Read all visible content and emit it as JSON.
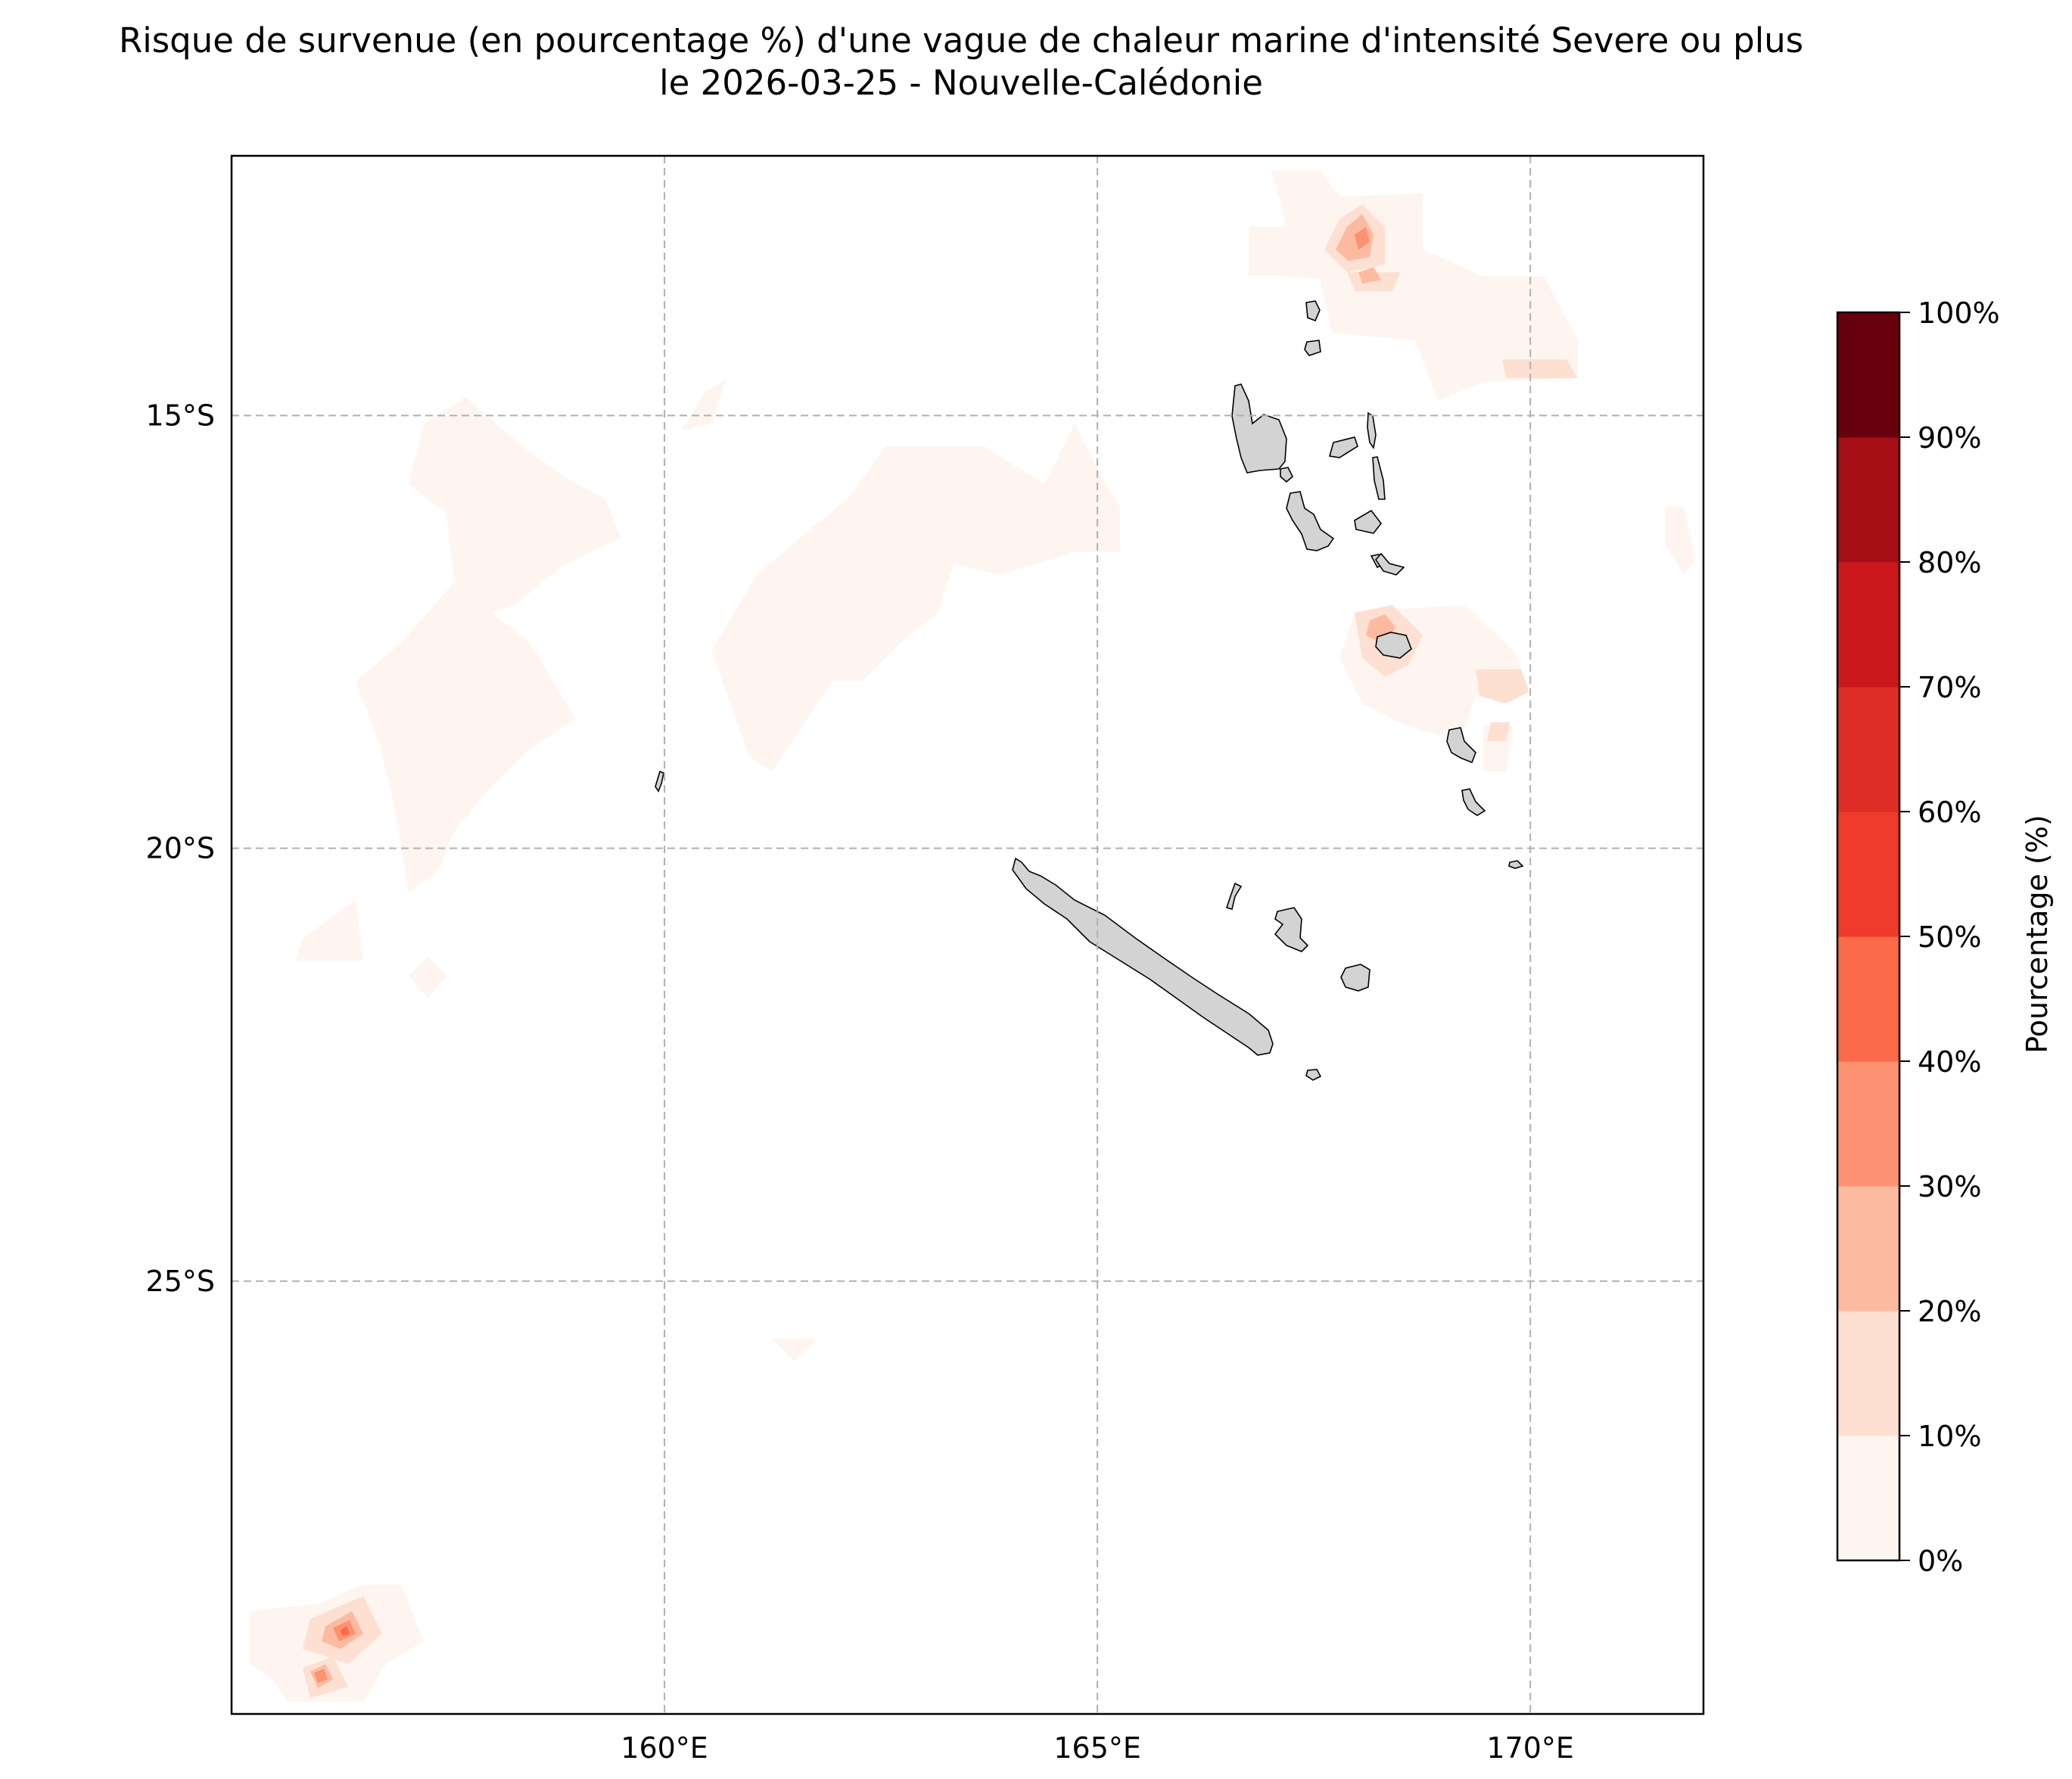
{
  "title": {
    "line1": "Risque de survenue (en pourcentage %) d'une vague de chaleur marine d'intensité Severe ou plus",
    "line2": "le 2026-03-25 - Nouvelle-Calédonie"
  },
  "map": {
    "lon_range": [
      155,
      172
    ],
    "lat_range": [
      -30,
      -12
    ],
    "lon_ticks": [
      {
        "value": 160,
        "label": "160°E"
      },
      {
        "value": 165,
        "label": "165°E"
      },
      {
        "value": 170,
        "label": "170°E"
      }
    ],
    "lat_ticks": [
      {
        "value": -15,
        "label": "15°S"
      },
      {
        "value": -20,
        "label": "20°S"
      },
      {
        "value": -25,
        "label": "25°S"
      }
    ],
    "gridlines": true,
    "land_color": "#d3d3d3"
  },
  "colorbar": {
    "label": "Pourcentage (%)",
    "levels": [
      {
        "label": "0%",
        "color": "#fff5f0"
      },
      {
        "label": "10%",
        "color": "#fee0d2"
      },
      {
        "label": "20%",
        "color": "#fcbba1"
      },
      {
        "label": "30%",
        "color": "#fc9272"
      },
      {
        "label": "40%",
        "color": "#fb6a4a"
      },
      {
        "label": "50%",
        "color": "#ef3b2c"
      },
      {
        "label": "60%",
        "color": "#de2d26"
      },
      {
        "label": "70%",
        "color": "#cb181d"
      },
      {
        "label": "80%",
        "color": "#a50f15"
      },
      {
        "label": "90%",
        "color": "#67000d"
      },
      {
        "label": "100%",
        "color": ""
      }
    ]
  }
}
